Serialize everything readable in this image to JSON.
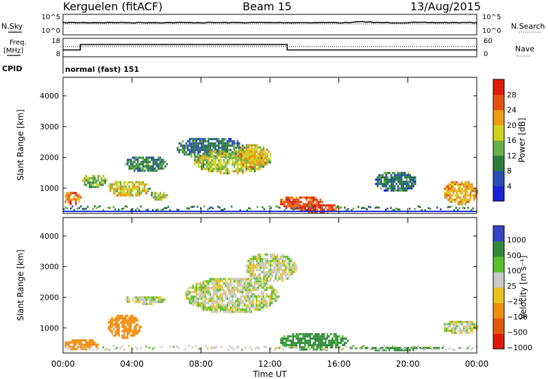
{
  "header": {
    "station": "Kerguelen (fitACF)",
    "beam": "Beam 15",
    "date": "13/Aug/2015"
  },
  "top_panels": {
    "nsky_label": "N.Sky",
    "nsearch_label": "N.Search",
    "freq_label_line1": "Freq.",
    "freq_label_line2": "[MHz]",
    "nave_label": "Nave",
    "cpid_label": "CPID",
    "noise_ticks": [
      "10^5",
      "10^0"
    ],
    "freq_ticks": [
      "18",
      "8"
    ],
    "nave_ticks": [
      "60",
      "0"
    ],
    "cpid_value": "normal (fast) 151"
  },
  "colors": {
    "power": [
      "#1a22d8",
      "#2a4fb4",
      "#2c7c3c",
      "#6ab048",
      "#d2d21e",
      "#ee9a12",
      "#e45410",
      "#e01a0a"
    ],
    "velocity": [
      "#e01a0a",
      "#e4580e",
      "#f08e12",
      "#e8c21e",
      "#c8c8c4",
      "#58c02a",
      "#328a38",
      "#3644c4"
    ],
    "ground_scatter": "#c8c8c4",
    "line_blue": "#1c2cd4"
  },
  "chart_data": [
    {
      "type": "heatmap",
      "title": "Power",
      "xlabel": "Time UT",
      "ylabel": "Slant Range [km]",
      "x_ticks": [
        "00:00",
        "04:00",
        "08:00",
        "12:00",
        "16:00",
        "20:00",
        "00:00"
      ],
      "x_range_hours": [
        0,
        24
      ],
      "y_ticks": [
        1000,
        2000,
        3000,
        4000
      ],
      "y_range_km": [
        180,
        4600
      ],
      "colorbar": {
        "label": "Power [dB]",
        "ticks": [
          4,
          8,
          12,
          16,
          20,
          24,
          28
        ],
        "range": [
          0,
          32
        ]
      },
      "regions": [
        {
          "t0": 0.0,
          "t1": 1.0,
          "r0": 500,
          "r1": 950,
          "power": 24
        },
        {
          "t0": 1.0,
          "t1": 2.5,
          "r0": 1050,
          "r1": 1500,
          "power": 14
        },
        {
          "t0": 2.5,
          "t1": 5.0,
          "r0": 750,
          "r1": 1300,
          "power": 18
        },
        {
          "t0": 3.5,
          "t1": 6.0,
          "r0": 1550,
          "r1": 2100,
          "power": 10
        },
        {
          "t0": 5.0,
          "t1": 6.0,
          "r0": 650,
          "r1": 950,
          "power": 16
        },
        {
          "t0": 6.5,
          "t1": 10.5,
          "r0": 2000,
          "r1": 2700,
          "power": 9
        },
        {
          "t0": 7.5,
          "t1": 12.0,
          "r0": 1500,
          "r1": 2300,
          "power": 16
        },
        {
          "t0": 10.0,
          "t1": 12.0,
          "r0": 1700,
          "r1": 2500,
          "power": 20
        },
        {
          "t0": 12.5,
          "t1": 15.0,
          "r0": 350,
          "r1": 800,
          "power": 27
        },
        {
          "t0": 13.5,
          "t1": 16.0,
          "r0": 250,
          "r1": 550,
          "power": 28
        },
        {
          "t0": 18.0,
          "t1": 20.5,
          "r0": 900,
          "r1": 1600,
          "power": 9
        },
        {
          "t0": 22.0,
          "t1": 24.0,
          "r0": 500,
          "r1": 1300,
          "power": 21
        }
      ]
    },
    {
      "type": "heatmap",
      "title": "Velocity",
      "xlabel": "Time UT",
      "ylabel": "Slant Range [km]",
      "x_ticks": [
        "00:00",
        "04:00",
        "08:00",
        "12:00",
        "16:00",
        "20:00",
        "00:00"
      ],
      "x_range_hours": [
        0,
        24
      ],
      "y_ticks": [
        1000,
        2000,
        3000,
        4000
      ],
      "y_range_km": [
        180,
        4600
      ],
      "colorbar": {
        "label": "Velocity [m s⁻¹]",
        "ticks": [
          "1000",
          "500",
          "100",
          "25",
          "−25",
          "−100",
          "−500",
          "−1000"
        ]
      },
      "regions": [
        {
          "t0": 0.0,
          "t1": 2.0,
          "r0": 300,
          "r1": 700,
          "velocity": -200
        },
        {
          "t0": 2.5,
          "t1": 4.5,
          "r0": 700,
          "r1": 1500,
          "velocity": -400
        },
        {
          "t0": 3.5,
          "t1": 6.0,
          "r0": 1800,
          "r1": 2100,
          "velocity": 0
        },
        {
          "t0": 7.0,
          "t1": 12.5,
          "r0": 1500,
          "r1": 2700,
          "velocity": 0
        },
        {
          "t0": 10.5,
          "t1": 13.5,
          "r0": 2500,
          "r1": 3500,
          "velocity": 0
        },
        {
          "t0": 12.5,
          "t1": 16.5,
          "r0": 300,
          "r1": 900,
          "velocity": 150
        },
        {
          "t0": 16.5,
          "t1": 22.0,
          "r0": 300,
          "r1": 450,
          "velocity": 300
        },
        {
          "t0": 22.0,
          "t1": 24.0,
          "r0": 800,
          "r1": 1300,
          "velocity": 0
        }
      ]
    }
  ]
}
